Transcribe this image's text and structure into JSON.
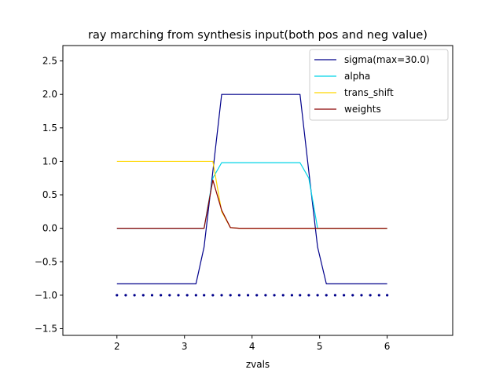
{
  "chart_data": {
    "type": "line",
    "title": "ray marching from synthesis input(both pos and neg value)",
    "xlabel": "zvals",
    "ylabel": "",
    "xlim": [
      1.2,
      6.97
    ],
    "ylim": [
      -1.6,
      2.73
    ],
    "xticks": [
      2,
      3,
      4,
      5,
      6
    ],
    "yticks": [
      -1.5,
      -1.0,
      -0.5,
      0.0,
      0.5,
      1.0,
      1.5,
      2.0,
      2.5
    ],
    "ytick_labels": [
      "−1.5",
      "−1.0",
      "−0.5",
      "0.0",
      "0.5",
      "1.0",
      "1.5",
      "2.0",
      "2.5"
    ],
    "grid": false,
    "legend_position": "top-right",
    "series": [
      {
        "name": "sigma(max=30.0)",
        "color": "#00008b",
        "x": [
          2.0,
          2.13,
          2.26,
          2.39,
          2.52,
          2.65,
          2.78,
          2.91,
          3.04,
          3.17,
          3.29,
          3.42,
          3.55,
          3.68,
          3.81,
          3.94,
          4.07,
          4.2,
          4.33,
          4.46,
          4.59,
          4.71,
          4.84,
          4.97,
          5.1,
          5.23,
          5.36,
          5.49,
          5.62,
          5.75,
          5.88,
          6.0
        ],
        "values": [
          -0.83,
          -0.83,
          -0.83,
          -0.83,
          -0.83,
          -0.83,
          -0.83,
          -0.83,
          -0.83,
          -0.83,
          -0.28,
          0.85,
          2.0,
          2.0,
          2.0,
          2.0,
          2.0,
          2.0,
          2.0,
          2.0,
          2.0,
          2.0,
          0.85,
          -0.28,
          -0.83,
          -0.83,
          -0.83,
          -0.83,
          -0.83,
          -0.83,
          -0.83,
          -0.83
        ]
      },
      {
        "name": "alpha",
        "color": "#00d4e6",
        "x": [
          2.0,
          2.13,
          2.26,
          2.39,
          2.52,
          2.65,
          2.78,
          2.91,
          3.04,
          3.17,
          3.29,
          3.42,
          3.55,
          3.68,
          3.81,
          3.94,
          4.07,
          4.2,
          4.33,
          4.46,
          4.59,
          4.71,
          4.84,
          4.97,
          5.1,
          5.23,
          5.36,
          5.49,
          5.62,
          5.75,
          5.88,
          6.0
        ],
        "values": [
          0.0,
          0.0,
          0.0,
          0.0,
          0.0,
          0.0,
          0.0,
          0.0,
          0.0,
          0.0,
          0.0,
          0.75,
          0.98,
          0.98,
          0.98,
          0.98,
          0.98,
          0.98,
          0.98,
          0.98,
          0.98,
          0.98,
          0.75,
          0.0,
          0.0,
          0.0,
          0.0,
          0.0,
          0.0,
          0.0,
          0.0,
          0.0
        ]
      },
      {
        "name": "trans_shift",
        "color": "#ffd700",
        "x": [
          2.0,
          2.13,
          2.26,
          2.39,
          2.52,
          2.65,
          2.78,
          2.91,
          3.04,
          3.17,
          3.29,
          3.42,
          3.55,
          3.68,
          3.81,
          3.94,
          4.07,
          4.2,
          4.33,
          4.46,
          4.59,
          4.71,
          4.84,
          4.97,
          5.1,
          5.23,
          5.36,
          5.49,
          5.62,
          5.75,
          5.88,
          6.0
        ],
        "values": [
          1.0,
          1.0,
          1.0,
          1.0,
          1.0,
          1.0,
          1.0,
          1.0,
          1.0,
          1.0,
          1.0,
          1.0,
          0.25,
          0.01,
          0.0,
          0.0,
          0.0,
          0.0,
          0.0,
          0.0,
          0.0,
          0.0,
          0.0,
          0.0,
          0.0,
          0.0,
          0.0,
          0.0,
          0.0,
          0.0,
          0.0,
          0.0
        ]
      },
      {
        "name": "weights",
        "color": "#8b0000",
        "x": [
          2.0,
          2.13,
          2.26,
          2.39,
          2.52,
          2.65,
          2.78,
          2.91,
          3.04,
          3.17,
          3.29,
          3.42,
          3.55,
          3.68,
          3.81,
          3.94,
          4.07,
          4.2,
          4.33,
          4.46,
          4.59,
          4.71,
          4.84,
          4.97,
          5.1,
          5.23,
          5.36,
          5.49,
          5.62,
          5.75,
          5.88,
          6.0
        ],
        "values": [
          0.0,
          0.0,
          0.0,
          0.0,
          0.0,
          0.0,
          0.0,
          0.0,
          0.0,
          0.0,
          0.0,
          0.72,
          0.27,
          0.01,
          0.0,
          0.0,
          0.0,
          0.0,
          0.0,
          0.0,
          0.0,
          0.0,
          0.0,
          0.0,
          0.0,
          0.0,
          0.0,
          0.0,
          0.0,
          0.0,
          0.0,
          0.0
        ]
      }
    ],
    "sample_points": {
      "color": "#00008b",
      "y": -1.0,
      "x": [
        2.0,
        2.13,
        2.26,
        2.39,
        2.52,
        2.65,
        2.78,
        2.91,
        3.04,
        3.17,
        3.29,
        3.42,
        3.55,
        3.68,
        3.81,
        3.94,
        4.07,
        4.2,
        4.33,
        4.46,
        4.59,
        4.71,
        4.84,
        4.97,
        5.1,
        5.23,
        5.36,
        5.49,
        5.62,
        5.75,
        5.88,
        6.0
      ]
    }
  }
}
